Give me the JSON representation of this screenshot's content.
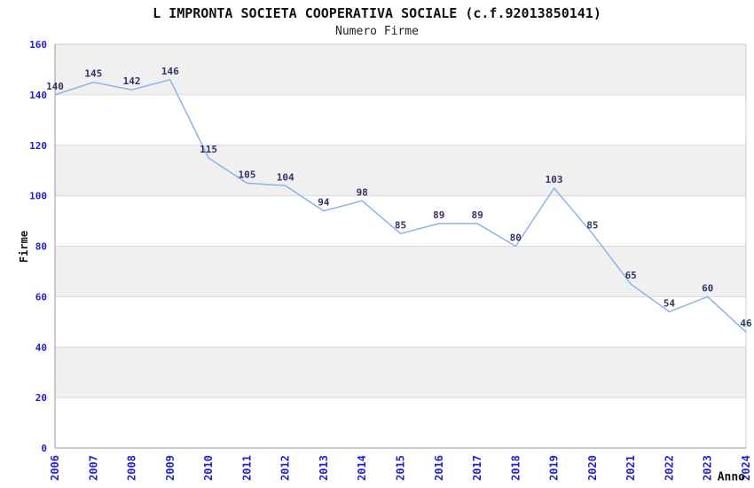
{
  "header": {
    "title": "L IMPRONTA SOCIETA COOPERATIVA SOCIALE (c.f.92013850141)",
    "subtitle": "Numero Firme"
  },
  "chart_data": {
    "type": "line",
    "title": "L IMPRONTA SOCIETA COOPERATIVA SOCIALE (c.f.92013850141)",
    "subtitle": "Numero Firme",
    "xlabel": "Anno",
    "ylabel": "Firme",
    "x": [
      2006,
      2007,
      2008,
      2009,
      2010,
      2011,
      2012,
      2013,
      2014,
      2015,
      2016,
      2017,
      2018,
      2019,
      2020,
      2021,
      2022,
      2023,
      2024
    ],
    "values": [
      140,
      145,
      142,
      146,
      115,
      105,
      104,
      94,
      98,
      85,
      89,
      89,
      80,
      103,
      85,
      65,
      54,
      60,
      46
    ],
    "ylim": [
      0,
      160
    ],
    "ytick_step": 20,
    "yticks": [
      0,
      20,
      40,
      60,
      80,
      100,
      120,
      140,
      160
    ],
    "grid": true,
    "legend": "none",
    "point_labels_visible": true,
    "colors": {
      "line": "#8ab4e6",
      "tick_label": "#2222cc",
      "point_label": "#333366",
      "band_gray": "#f0f0f0",
      "band_white": "#ffffff",
      "gridline": "#d9d9d9",
      "plot_border": "#c9c9c9",
      "axis_line": "#999999",
      "title_text": "#111111"
    }
  }
}
